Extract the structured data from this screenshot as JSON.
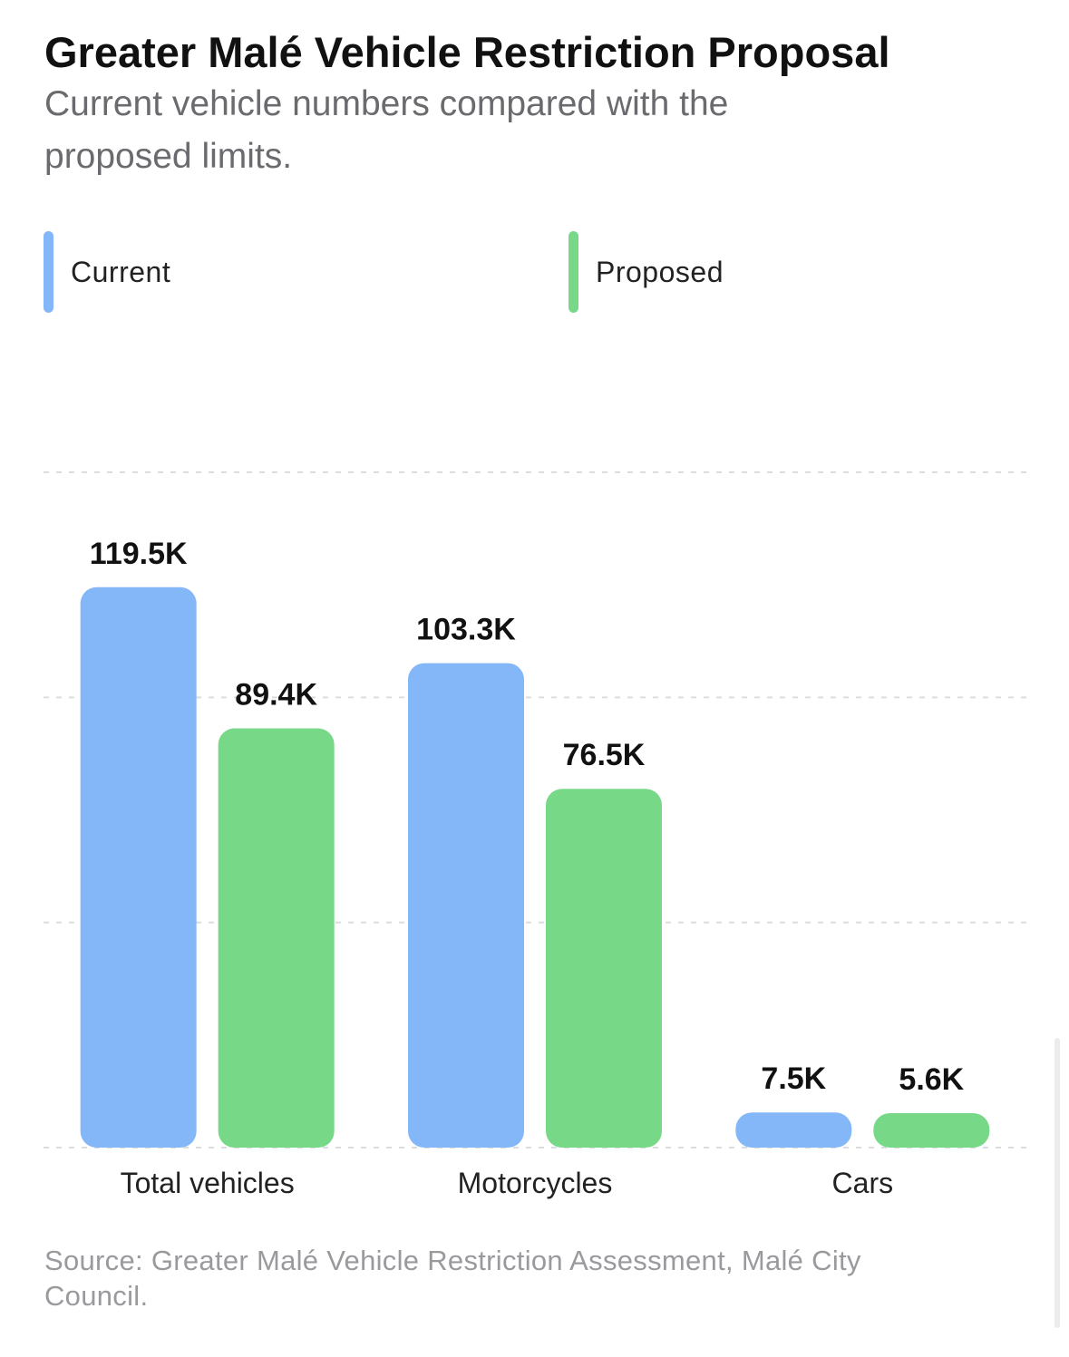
{
  "chart_data": {
    "type": "bar",
    "title": "Greater Malé Vehicle Restriction Proposal",
    "subtitle": "Current vehicle numbers compared with the proposed limits.",
    "categories": [
      "Total vehicles",
      "Motorcycles",
      "Cars"
    ],
    "series": [
      {
        "name": "Current",
        "values": [
          119.5,
          103.3,
          7.5
        ],
        "labels": [
          "119.5K",
          "103.3K",
          "7.5K"
        ],
        "color": "#84b7f7"
      },
      {
        "name": "Proposed",
        "values": [
          89.4,
          76.5,
          5.6
        ],
        "labels": [
          "89.4K",
          "76.5K",
          "5.6K"
        ],
        "color": "#77d987"
      }
    ],
    "unit": "thousand vehicles",
    "ylim": [
      0,
      144
    ],
    "grid": true,
    "legend_position": "top",
    "source": "Source: Greater Malé Vehicle Restriction Assessment, Malé City Council."
  }
}
